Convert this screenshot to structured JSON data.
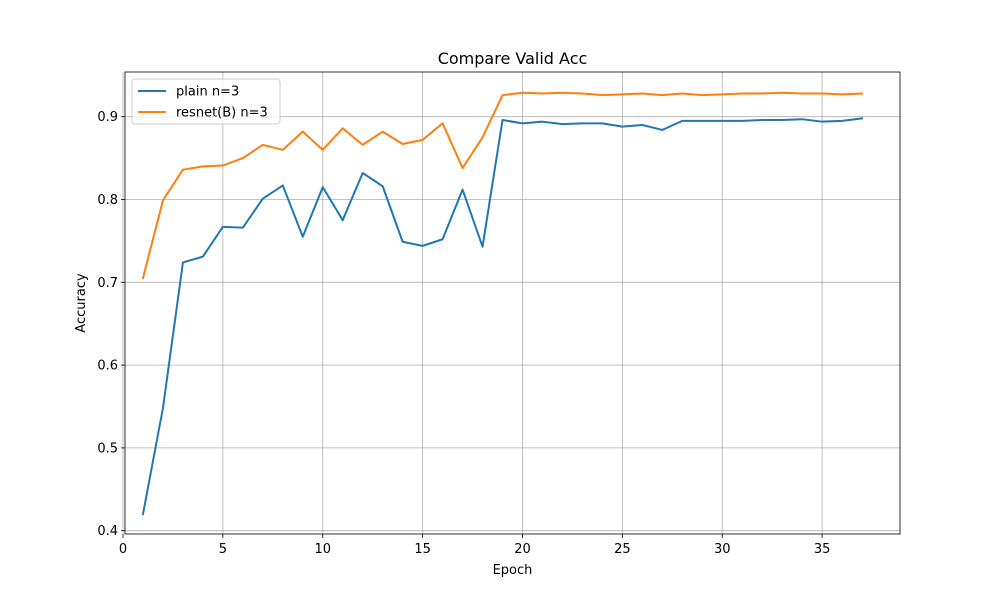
{
  "chart_data": {
    "type": "line",
    "title": "Compare Valid Acc",
    "xlabel": "Epoch",
    "ylabel": "Accuracy",
    "xlim": [
      0.1,
      38.9
    ],
    "ylim": [
      0.396,
      0.954
    ],
    "xticks": [
      0,
      5,
      10,
      15,
      20,
      25,
      30,
      35
    ],
    "yticks": [
      0.4,
      0.5,
      0.6,
      0.7,
      0.8,
      0.9
    ],
    "ytick_labels": [
      "0.4",
      "0.5",
      "0.6",
      "0.7",
      "0.8",
      "0.9"
    ],
    "grid": true,
    "legend_position": "top-left",
    "x": [
      1,
      2,
      3,
      4,
      5,
      6,
      7,
      8,
      9,
      10,
      11,
      12,
      13,
      14,
      15,
      16,
      17,
      18,
      19,
      20,
      21,
      22,
      23,
      24,
      25,
      26,
      27,
      28,
      29,
      30,
      31,
      32,
      33,
      34,
      35,
      36,
      37
    ],
    "series": [
      {
        "name": "plain n=3",
        "color": "#1f77b4",
        "values": [
          0.42,
          0.548,
          0.724,
          0.731,
          0.767,
          0.766,
          0.801,
          0.817,
          0.755,
          0.815,
          0.775,
          0.832,
          0.816,
          0.749,
          0.744,
          0.752,
          0.812,
          0.743,
          0.896,
          0.892,
          0.894,
          0.891,
          0.892,
          0.892,
          0.888,
          0.89,
          0.884,
          0.895,
          0.895,
          0.895,
          0.895,
          0.896,
          0.896,
          0.897,
          0.894,
          0.895,
          0.898
        ]
      },
      {
        "name": "resnet(B) n=3",
        "color": "#ff7f0e",
        "values": [
          0.705,
          0.799,
          0.836,
          0.84,
          0.841,
          0.85,
          0.866,
          0.86,
          0.882,
          0.86,
          0.886,
          0.866,
          0.882,
          0.867,
          0.872,
          0.892,
          0.838,
          0.875,
          0.926,
          0.929,
          0.928,
          0.929,
          0.928,
          0.926,
          0.927,
          0.928,
          0.926,
          0.928,
          0.926,
          0.927,
          0.928,
          0.928,
          0.929,
          0.928,
          0.928,
          0.927,
          0.928
        ]
      }
    ]
  }
}
